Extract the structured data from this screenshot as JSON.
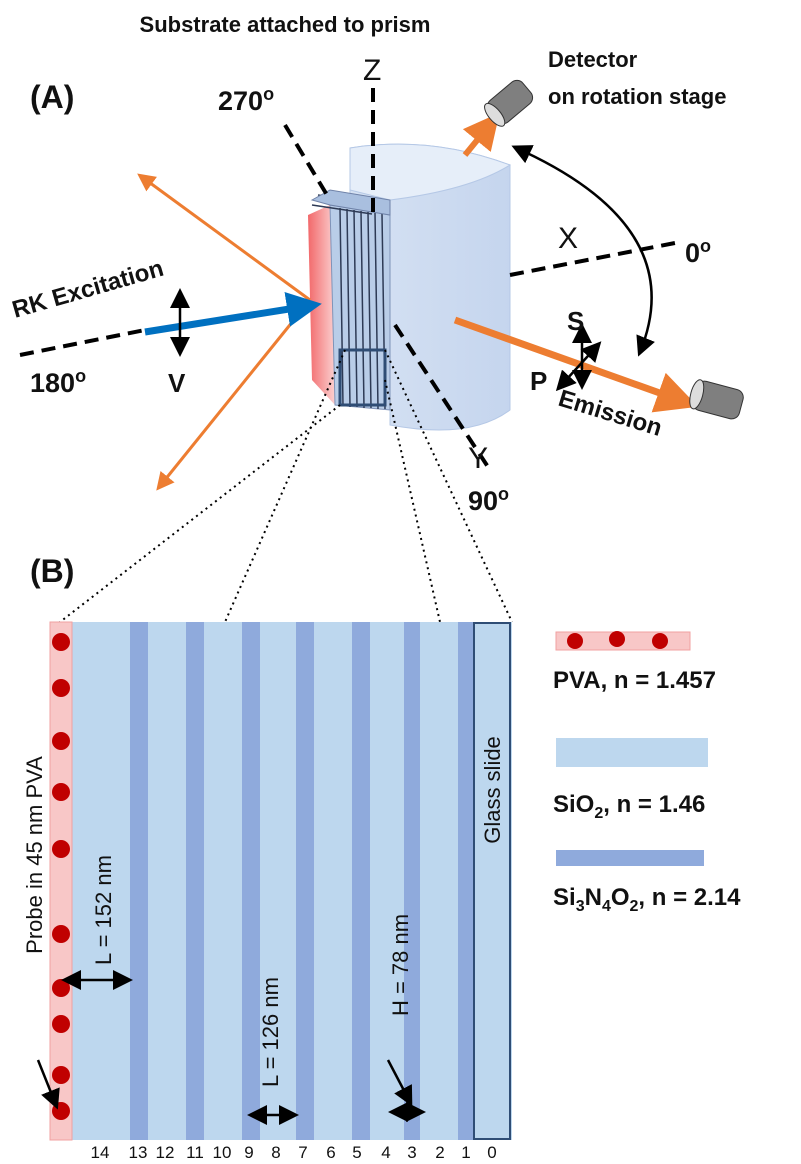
{
  "panel_a": {
    "label": "(A)",
    "title": "Substrate attached to prism",
    "axes": {
      "z": "Z",
      "x": "X",
      "y": "Y"
    },
    "angles": [
      {
        "text": "270",
        "sup": "o"
      },
      {
        "text": "0",
        "sup": "o"
      },
      {
        "text": "180",
        "sup": "o"
      },
      {
        "text": "90",
        "sup": "o"
      }
    ],
    "detector": [
      "Detector",
      "on rotation stage"
    ],
    "excitation": "RK Excitation",
    "emission": "Emission",
    "polarization": {
      "v": "V",
      "s": "S",
      "p": "P"
    }
  },
  "panel_b": {
    "label": "(B)",
    "probe": "Probe in 45 nm PVA",
    "glass": "Glass slide",
    "dimensions": [
      "L = 152 nm",
      "L = 126 nm",
      "H = 78 nm"
    ],
    "layer_numbers": [
      14,
      13,
      12,
      11,
      10,
      9,
      8,
      7,
      6,
      5,
      4,
      3,
      2,
      1,
      0
    ],
    "legend": [
      {
        "text": "PVA, n = 1.457"
      },
      {
        "parts": [
          "SiO",
          "2",
          ", n = 1.46"
        ]
      },
      {
        "parts": [
          "Si",
          "3",
          "N",
          "4",
          "O",
          "2",
          ", n = 2.14"
        ]
      }
    ]
  }
}
